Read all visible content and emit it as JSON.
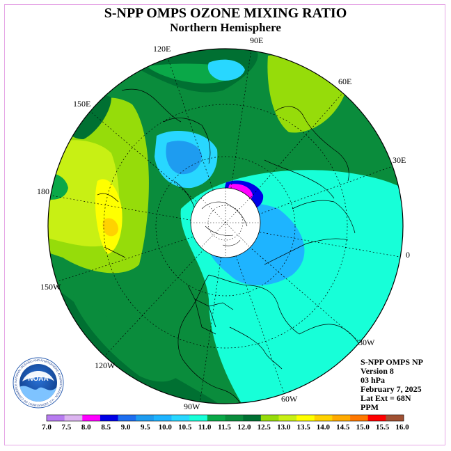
{
  "title": "S-NPP OMPS OZONE MIXING RATIO",
  "subtitle": "Northern Hemisphere",
  "longitude_labels": [
    "90E",
    "60E",
    "30E",
    "0",
    "30W",
    "60W",
    "90W",
    "120W",
    "150W",
    "180",
    "150E",
    "120E"
  ],
  "info": {
    "line1": "S-NPP OMPS NP",
    "line2": "Version 8",
    "line3": "03 hPa",
    "line4": "February 7, 2025",
    "line5": "Lat Ext = 68N",
    "line6": "PPM"
  },
  "colorbar": {
    "labels": [
      "7.0",
      "7.5",
      "8.0",
      "8.5",
      "9.0",
      "9.5",
      "10.0",
      "10.5",
      "11.0",
      "11.5",
      "12.0",
      "12.5",
      "13.0",
      "13.5",
      "14.0",
      "14.5",
      "15.0",
      "15.5",
      "16.0"
    ],
    "colors": [
      "#b77cf0",
      "#dcb4f0",
      "#ff00ff",
      "#0000e6",
      "#1e6ef0",
      "#1e9cf0",
      "#1eb4ff",
      "#28d7ff",
      "#17ffd8",
      "#0aa848",
      "#0a8c3c",
      "#007032",
      "#96dc0a",
      "#c8f014",
      "#ffff00",
      "#ffd200",
      "#ffaa00",
      "#ff7800",
      "#ff0000",
      "#a05032"
    ]
  },
  "logo": {
    "text": "NOAA",
    "ring_text": "NATIONAL OCEANIC AND ATMOSPHERIC ADMINISTRATION · U.S. DEPARTMENT OF COMMERCE"
  }
}
